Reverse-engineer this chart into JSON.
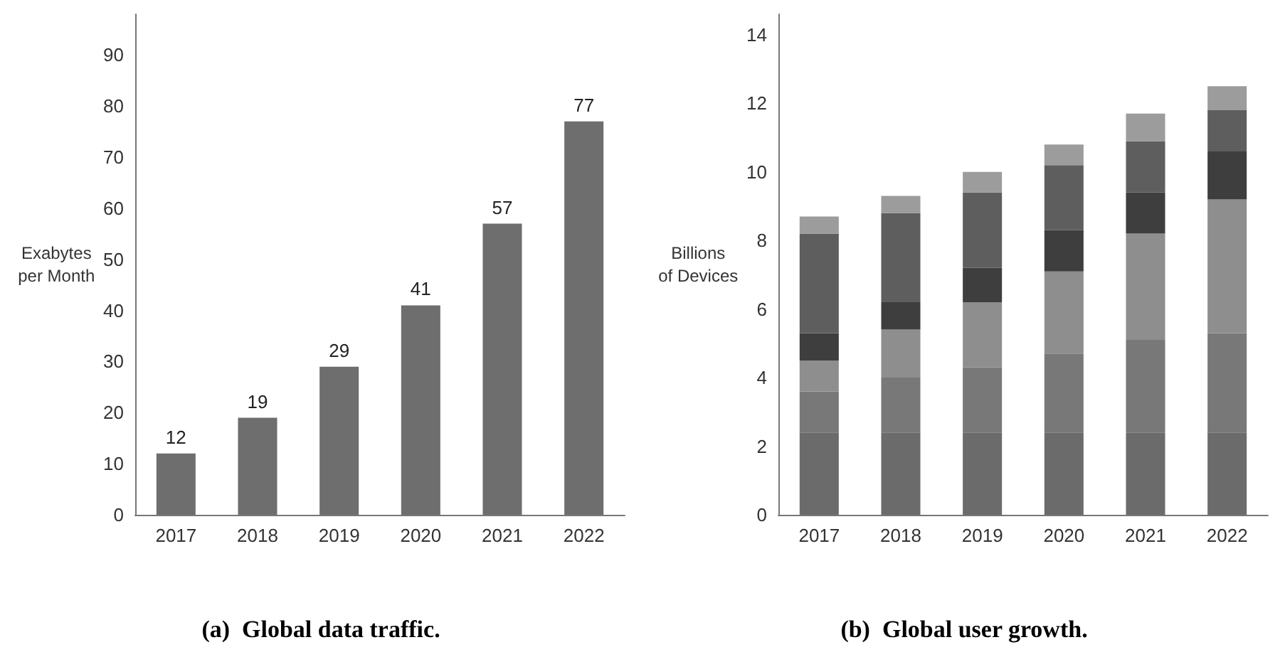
{
  "chart_data": [
    {
      "type": "bar",
      "title": "(a)  Global data traffic.",
      "ylabel": "Exabytes per Month",
      "categories": [
        "2017",
        "2018",
        "2019",
        "2020",
        "2021",
        "2022"
      ],
      "values": [
        12,
        19,
        29,
        41,
        57,
        77
      ],
      "color": "#6e6e6e",
      "ylim": [
        0,
        98
      ],
      "yticks": [
        0,
        10,
        20,
        30,
        40,
        50,
        60,
        70,
        80,
        90
      ],
      "data_labels": true
    },
    {
      "type": "bar",
      "title": "(b)  Global user growth.",
      "ylabel": "Billions of Devices",
      "categories": [
        "2017",
        "2018",
        "2019",
        "2020",
        "2021",
        "2022"
      ],
      "stacked": true,
      "ylim": [
        0,
        14.6
      ],
      "yticks": [
        0,
        2,
        4,
        6,
        8,
        10,
        12,
        14
      ],
      "series": [
        {
          "color": "#6b6b6b",
          "values": [
            2.4,
            2.4,
            2.4,
            2.4,
            2.4,
            2.4
          ]
        },
        {
          "color": "#787878",
          "values": [
            1.2,
            1.6,
            1.9,
            2.3,
            2.7,
            2.9
          ]
        },
        {
          "color": "#8e8e8e",
          "values": [
            0.9,
            1.4,
            1.9,
            2.4,
            3.1,
            3.9
          ]
        },
        {
          "color": "#3e3e3e",
          "values": [
            0.8,
            0.8,
            1.0,
            1.2,
            1.2,
            1.4
          ]
        },
        {
          "color": "#5e5e5e",
          "values": [
            2.9,
            2.6,
            2.2,
            1.9,
            1.5,
            1.2
          ]
        },
        {
          "color": "#9c9c9c",
          "values": [
            0.5,
            0.5,
            0.6,
            0.6,
            0.8,
            0.7
          ]
        }
      ]
    }
  ]
}
